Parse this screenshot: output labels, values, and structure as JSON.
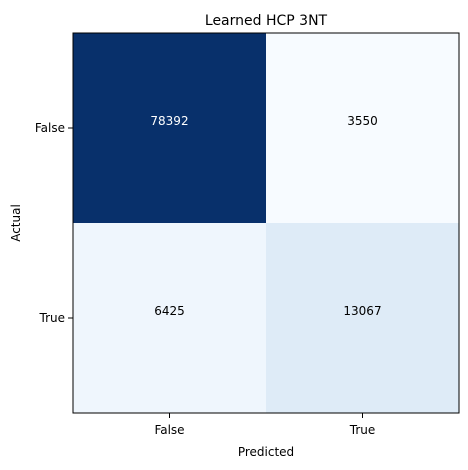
{
  "chart_data": {
    "type": "heatmap",
    "title": "Learned HCP 3NT",
    "xlabel": "Predicted",
    "ylabel": "Actual",
    "x_categories": [
      "False",
      "True"
    ],
    "y_categories": [
      "False",
      "True"
    ],
    "values": [
      [
        78392,
        3550
      ],
      [
        6425,
        13067
      ]
    ],
    "colormap": "Blues",
    "colors": {
      "max": "#08306b",
      "min": "#f7fbff",
      "label_dark": "#000000",
      "label_light": "#ffffff"
    },
    "grid": false,
    "legend": "none"
  }
}
